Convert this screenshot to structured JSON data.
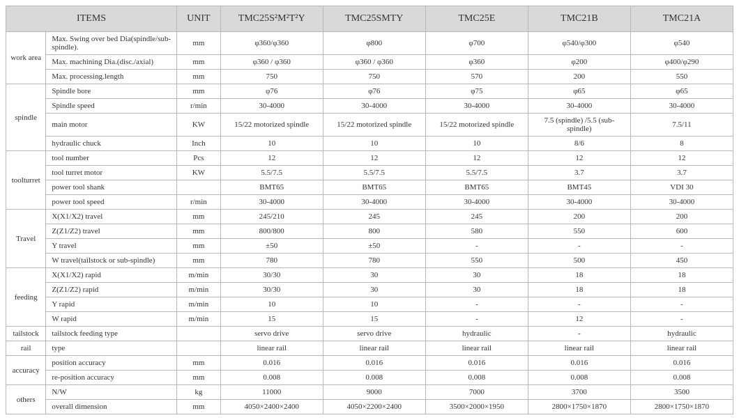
{
  "headers": {
    "items": "ITEMS",
    "unit": "UNIT",
    "m1": "TMC25S²M²T²Y",
    "m2": "TMC25SMTY",
    "m3": "TMC25E",
    "m4": "TMC21B",
    "m5": "TMC21A"
  },
  "groups": [
    {
      "name": "work area",
      "rows": [
        {
          "item": "Max. Swing over bed Dia(spindle/sub-spindle).",
          "unit": "mm",
          "v": [
            "φ360/φ360",
            "φ800",
            "φ700",
            "φ540/φ300",
            "φ540"
          ]
        },
        {
          "item": "Max. machining Dia.(disc./axial)",
          "unit": "mm",
          "v": [
            "φ360 / φ360",
            "φ360 / φ360",
            "φ360",
            "φ200",
            "φ400/φ290"
          ]
        },
        {
          "item": "Max. processing.length",
          "unit": "mm",
          "v": [
            "750",
            "750",
            "570",
            "200",
            "550"
          ]
        }
      ]
    },
    {
      "name": "spindle",
      "rows": [
        {
          "item": "Spindle bore",
          "unit": "mm",
          "v": [
            "φ76",
            "φ76",
            "φ75",
            "φ65",
            "φ65"
          ]
        },
        {
          "item": "Spindle speed",
          "unit": "r/min",
          "v": [
            "30-4000",
            "30-4000",
            "30-4000",
            "30-4000",
            "30-4000"
          ]
        },
        {
          "item": "main motor",
          "unit": "KW",
          "v": [
            "15/22  motorized spindle",
            "15/22  motorized spindle",
            "15/22  motorized spindle",
            "7.5 (spindle) /5.5 (sub-spindle)",
            "7.5/11"
          ]
        },
        {
          "item": "hydraulic chuck",
          "unit": "Inch",
          "v": [
            "10",
            "10",
            "10",
            "8/6",
            "8"
          ]
        }
      ]
    },
    {
      "name": "toolturret",
      "rows": [
        {
          "item": "tool number",
          "unit": "Pcs",
          "v": [
            "12",
            "12",
            "12",
            "12",
            "12"
          ]
        },
        {
          "item": "tool turret motor",
          "unit": "KW",
          "v": [
            "5.5/7.5",
            "5.5/7.5",
            "5.5/7.5",
            "3.7",
            "3.7"
          ]
        },
        {
          "item": "power tool shank",
          "unit": "",
          "v": [
            "BMT65",
            "BMT65",
            "BMT65",
            "BMT45",
            "VDI 30"
          ]
        },
        {
          "item": "power tool speed",
          "unit": "r/min",
          "v": [
            "30-4000",
            "30-4000",
            "30-4000",
            "30-4000",
            "30-4000"
          ]
        }
      ]
    },
    {
      "name": "Travel",
      "rows": [
        {
          "item": "X(X1/X2) travel",
          "unit": "mm",
          "v": [
            "245/210",
            "245",
            "245",
            "200",
            "200"
          ]
        },
        {
          "item": "Z(Z1/Z2) travel",
          "unit": "mm",
          "v": [
            "800/800",
            "800",
            "580",
            "550",
            "600"
          ]
        },
        {
          "item": "Y travel",
          "unit": "mm",
          "v": [
            "±50",
            "±50",
            "-",
            "-",
            "-"
          ]
        },
        {
          "item": "W travel(tailstock or sub-spindle)",
          "unit": "mm",
          "v": [
            "780",
            "780",
            "550",
            "500",
            "450"
          ]
        }
      ]
    },
    {
      "name": "feeding",
      "rows": [
        {
          "item": "X(X1/X2) rapid",
          "unit": "m/min",
          "v": [
            "30/30",
            "30",
            "30",
            "18",
            "18"
          ]
        },
        {
          "item": "Z(Z1/Z2) rapid",
          "unit": "m/min",
          "v": [
            "30/30",
            "30",
            "30",
            "18",
            "18"
          ]
        },
        {
          "item": "Y rapid",
          "unit": "m/min",
          "v": [
            "10",
            "10",
            "-",
            "-",
            "-"
          ]
        },
        {
          "item": "W rapid",
          "unit": "m/min",
          "v": [
            "15",
            "15",
            "-",
            "12",
            "-"
          ]
        }
      ]
    },
    {
      "name": "tailstock",
      "rows": [
        {
          "item": "tailstock feeding type",
          "unit": "",
          "v": [
            "servo drive",
            "servo drive",
            "hydraulic",
            "-",
            "hydraulic"
          ]
        }
      ]
    },
    {
      "name": "rail",
      "rows": [
        {
          "item": "type",
          "unit": "",
          "v": [
            "linear rail",
            "linear rail",
            "linear rail",
            "linear rail",
            "linear rail"
          ]
        }
      ]
    },
    {
      "name": "accuracy",
      "rows": [
        {
          "item": "position accuracy",
          "unit": "mm",
          "v": [
            "0.016",
            "0.016",
            "0.016",
            "0.016",
            "0.016"
          ]
        },
        {
          "item": "re-position accuracy",
          "unit": "mm",
          "v": [
            "0.008",
            "0.008",
            "0.008",
            "0.008",
            "0.008"
          ]
        }
      ]
    },
    {
      "name": "others",
      "rows": [
        {
          "item": "N/W",
          "unit": "kg",
          "v": [
            "11000",
            "9000",
            "7000",
            "3700",
            "3500"
          ]
        },
        {
          "item": "overall dimension",
          "unit": "mm",
          "v": [
            "4050×2400×2400",
            "4050×2200×2400",
            "3500×2000×1950",
            "2800×1750×1870",
            "2800×1750×1870"
          ]
        }
      ]
    }
  ]
}
